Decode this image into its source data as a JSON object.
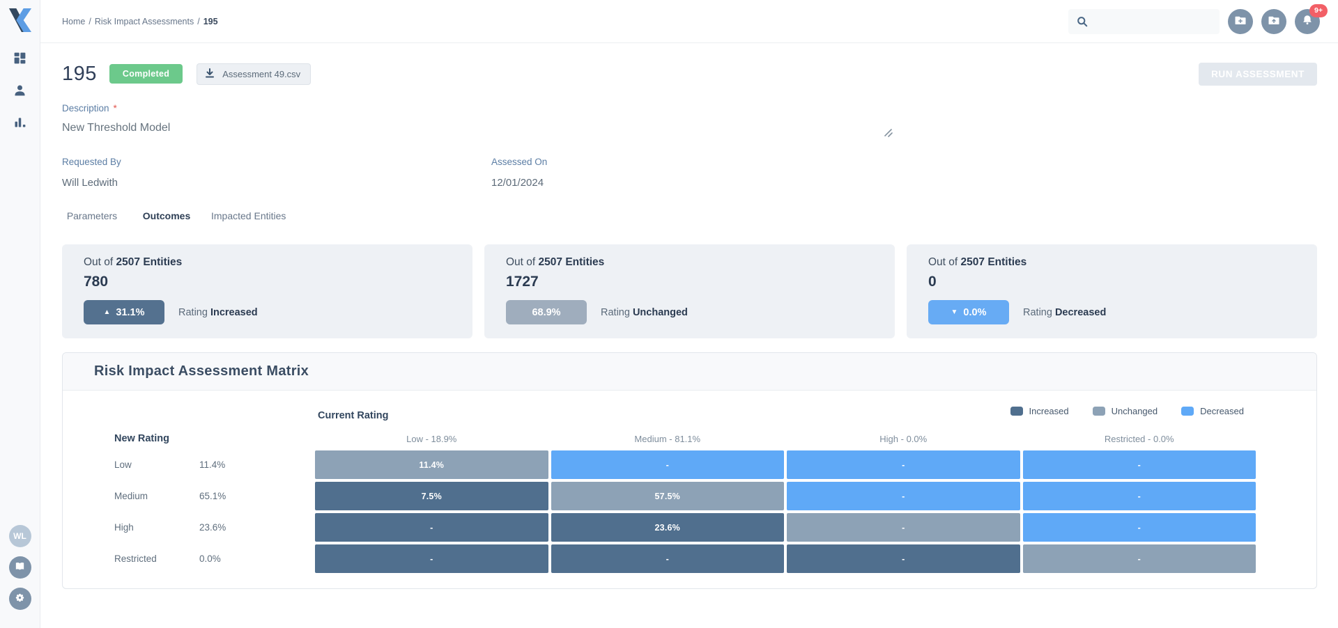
{
  "colors": {
    "accent_blue": "#4470a0",
    "status_green": "#6cc98b",
    "increased": "#506f8e",
    "unchanged": "#8da2b6",
    "decreased": "#5fa9f7",
    "pill_increased": "#54718f",
    "pill_unchanged": "#9fadbd",
    "pill_decreased": "#67abf4",
    "notification_badge_red": "#f25f66"
  },
  "topbar": {
    "breadcrumb": {
      "home": "Home",
      "separator": "/",
      "section": "Risk Impact Assessments",
      "current": "195"
    },
    "search_placeholder": "",
    "notification_badge": "9+"
  },
  "sidebar": {
    "avatar_initials": "WL"
  },
  "header": {
    "title": "195",
    "status_badge": "Completed",
    "attachment_label": "Assessment 49.csv",
    "run_button_label": "RUN ASSESSMENT"
  },
  "description": {
    "label": "Description",
    "required_marker": "*",
    "value": "New Threshold Model"
  },
  "fields": {
    "requested_by": {
      "label": "Requested By",
      "value": "Will Ledwith"
    },
    "assessed_on": {
      "label": "Assessed On",
      "value": "12/01/2024"
    }
  },
  "tabs": [
    {
      "label": "Parameters"
    },
    {
      "label": "Outcomes"
    },
    {
      "label": "Impacted Entities"
    }
  ],
  "cards": [
    {
      "prefix": "Out of",
      "total": "2507 Entities",
      "count": "780",
      "pill_arrow": "▲",
      "pill_value": "31.1%",
      "rating_label": "Rating",
      "rating_value": "Increased"
    },
    {
      "prefix": "Out of",
      "total": "2507 Entities",
      "count": "1727",
      "pill_arrow": "",
      "pill_value": "68.9%",
      "rating_label": "Rating",
      "rating_value": "Unchanged"
    },
    {
      "prefix": "Out of",
      "total": "2507 Entities",
      "count": "0",
      "pill_arrow": "▼",
      "pill_value": "0.0%",
      "rating_label": "Rating",
      "rating_value": "Decreased"
    }
  ],
  "chart_data": {
    "type": "heatmap",
    "title": "Risk Impact Assessment Matrix",
    "x_title": "Current Rating",
    "y_title": "New Rating",
    "legend": [
      {
        "label": "Increased",
        "status": "increased"
      },
      {
        "label": "Unchanged",
        "status": "unchanged"
      },
      {
        "label": "Decreased",
        "status": "decreased"
      }
    ],
    "columns": [
      "Low - 18.9%",
      "Medium - 81.1%",
      "High - 0.0%",
      "Restricted - 0.0%"
    ],
    "rows": [
      {
        "label": "Low",
        "value": "11.4%",
        "cells": [
          {
            "text": "11.4%",
            "status": "unchanged"
          },
          {
            "text": "-",
            "status": "decreased"
          },
          {
            "text": "-",
            "status": "decreased"
          },
          {
            "text": "-",
            "status": "decreased"
          }
        ]
      },
      {
        "label": "Medium",
        "value": "65.1%",
        "cells": [
          {
            "text": "7.5%",
            "status": "increased"
          },
          {
            "text": "57.5%",
            "status": "unchanged"
          },
          {
            "text": "-",
            "status": "decreased"
          },
          {
            "text": "-",
            "status": "decreased"
          }
        ]
      },
      {
        "label": "High",
        "value": "23.6%",
        "cells": [
          {
            "text": "-",
            "status": "increased"
          },
          {
            "text": "23.6%",
            "status": "increased"
          },
          {
            "text": "-",
            "status": "unchanged"
          },
          {
            "text": "-",
            "status": "decreased"
          }
        ]
      },
      {
        "label": "Restricted",
        "value": "0.0%",
        "cells": [
          {
            "text": "-",
            "status": "increased"
          },
          {
            "text": "-",
            "status": "increased"
          },
          {
            "text": "-",
            "status": "increased"
          },
          {
            "text": "-",
            "status": "unchanged"
          }
        ]
      }
    ]
  }
}
